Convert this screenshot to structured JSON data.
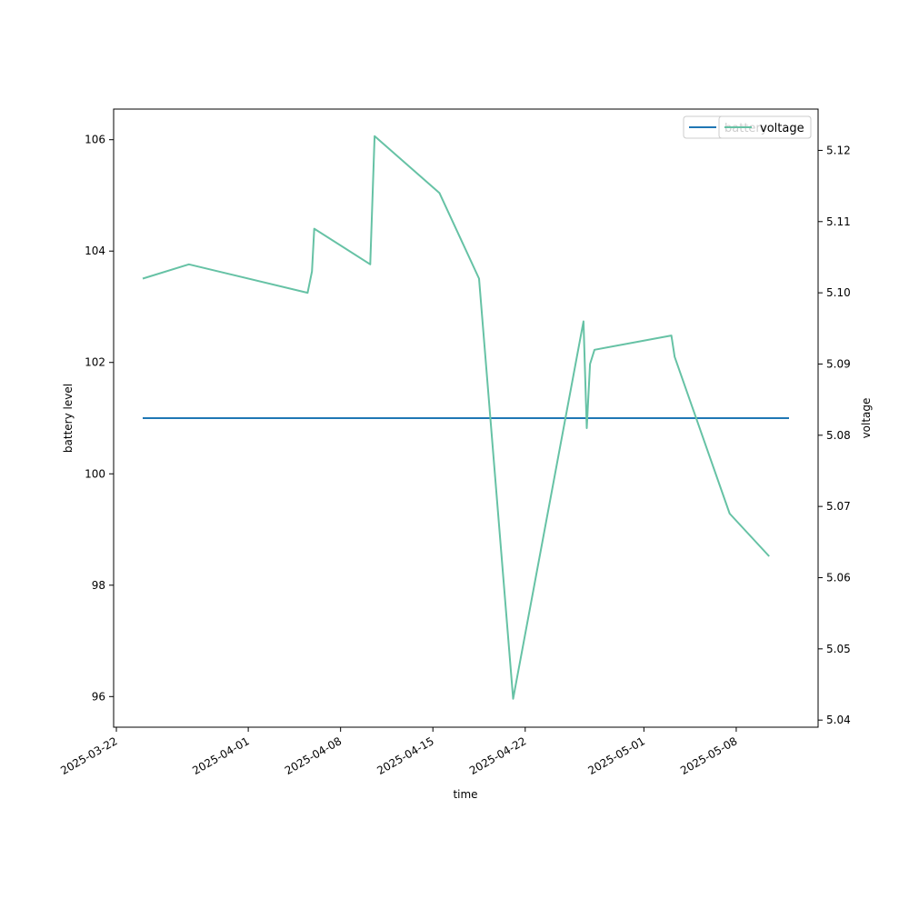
{
  "chart_data": {
    "type": "line",
    "xlabel": "time",
    "ylabel_left": "battery level",
    "ylabel_right": "voltage",
    "x_ticks": [
      "2025-03-22",
      "2025-04-01",
      "2025-04-08",
      "2025-04-15",
      "2025-04-22",
      "2025-05-01",
      "2025-05-08"
    ],
    "y_left_ticks": [
      96,
      98,
      100,
      102,
      104,
      106
    ],
    "y_right_ticks": [
      "5.04",
      "5.05",
      "5.06",
      "5.07",
      "5.08",
      "5.09",
      "5.10",
      "5.11",
      "5.12"
    ],
    "x_range": [
      "2025-03-21T19:00",
      "2025-05-14T05:00"
    ],
    "y_left_range": [
      95.45,
      106.55
    ],
    "y_right_range": [
      5.039,
      5.1258
    ],
    "legend_placement": "upper-right (two overlapping legends)",
    "grid": false,
    "series": [
      {
        "name": "battery",
        "axis": "left",
        "color": "#1f77b4",
        "points": [
          {
            "x": "2025-03-24T00:00",
            "y": 101
          },
          {
            "x": "2025-05-12T00:00",
            "y": 101
          }
        ]
      },
      {
        "name": "voltage",
        "axis": "right",
        "color": "#66c2a5",
        "points": [
          {
            "x": "2025-03-24T00:00",
            "y": 5.102
          },
          {
            "x": "2025-03-27T12:00",
            "y": 5.104
          },
          {
            "x": "2025-04-05T12:00",
            "y": 5.1
          },
          {
            "x": "2025-04-05T20:00",
            "y": 5.103
          },
          {
            "x": "2025-04-06T00:00",
            "y": 5.109
          },
          {
            "x": "2025-04-10T06:00",
            "y": 5.104
          },
          {
            "x": "2025-04-10T14:00",
            "y": 5.122
          },
          {
            "x": "2025-04-15T12:00",
            "y": 5.114
          },
          {
            "x": "2025-04-18T12:00",
            "y": 5.102
          },
          {
            "x": "2025-04-21T02:00",
            "y": 5.043
          },
          {
            "x": "2025-04-26T10:00",
            "y": 5.096
          },
          {
            "x": "2025-04-26T16:00",
            "y": 5.081
          },
          {
            "x": "2025-04-26T22:00",
            "y": 5.09
          },
          {
            "x": "2025-04-27T06:00",
            "y": 5.092
          },
          {
            "x": "2025-05-03T02:00",
            "y": 5.094
          },
          {
            "x": "2025-05-03T08:00",
            "y": 5.091
          },
          {
            "x": "2025-05-07T12:00",
            "y": 5.069
          },
          {
            "x": "2025-05-10T12:00",
            "y": 5.063
          }
        ]
      }
    ]
  }
}
